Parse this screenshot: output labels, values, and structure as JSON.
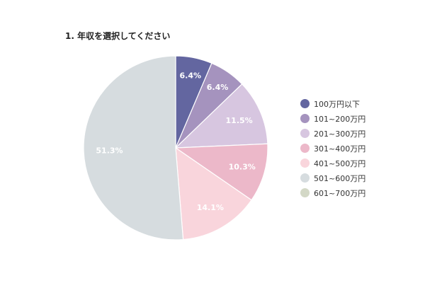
{
  "chart_data": {
    "type": "pie",
    "title": "1. 年収を選択してください",
    "categories": [
      "100万円以下",
      "101~200万円",
      "201~300万円",
      "301~400万円",
      "401~500万円",
      "501~600万円",
      "601~700万円"
    ],
    "values": [
      6.4,
      6.4,
      11.5,
      10.3,
      14.1,
      51.3,
      0
    ],
    "data_labels": [
      "6.4%",
      "6.4%",
      "11.5%",
      "10.3%",
      "14.1%",
      "51.3%",
      ""
    ],
    "colors": [
      "#6366a0",
      "#a593be",
      "#d7c6e0",
      "#ecb8c9",
      "#f9d5dc",
      "#d6dcdf",
      "#d3d8c6"
    ],
    "start_angle_deg": 0,
    "direction": "clockwise",
    "legend_position": "right"
  }
}
